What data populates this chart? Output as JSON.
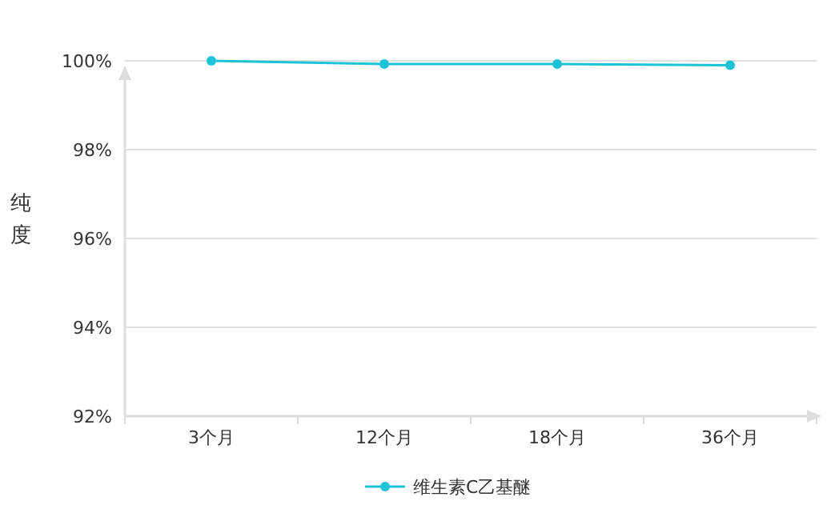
{
  "chart_data": {
    "type": "line",
    "ylabel": "纯度",
    "categories": [
      "3个月",
      "12个月",
      "18个月",
      "36个月"
    ],
    "series": [
      {
        "name": "维生素C乙基醚",
        "color": "#1cc3d6",
        "values": [
          100,
          99.93,
          99.93,
          99.9
        ]
      }
    ],
    "ylim": [
      92,
      100
    ],
    "yticks": [
      {
        "value": 92,
        "label": "92%"
      },
      {
        "value": 94,
        "label": "94%"
      },
      {
        "value": 96,
        "label": "96%"
      },
      {
        "value": 98,
        "label": "98%"
      },
      {
        "value": 100,
        "label": "100%"
      }
    ],
    "grid": "y",
    "legend": "bottom",
    "marker": "circle",
    "line_style": "solid"
  }
}
